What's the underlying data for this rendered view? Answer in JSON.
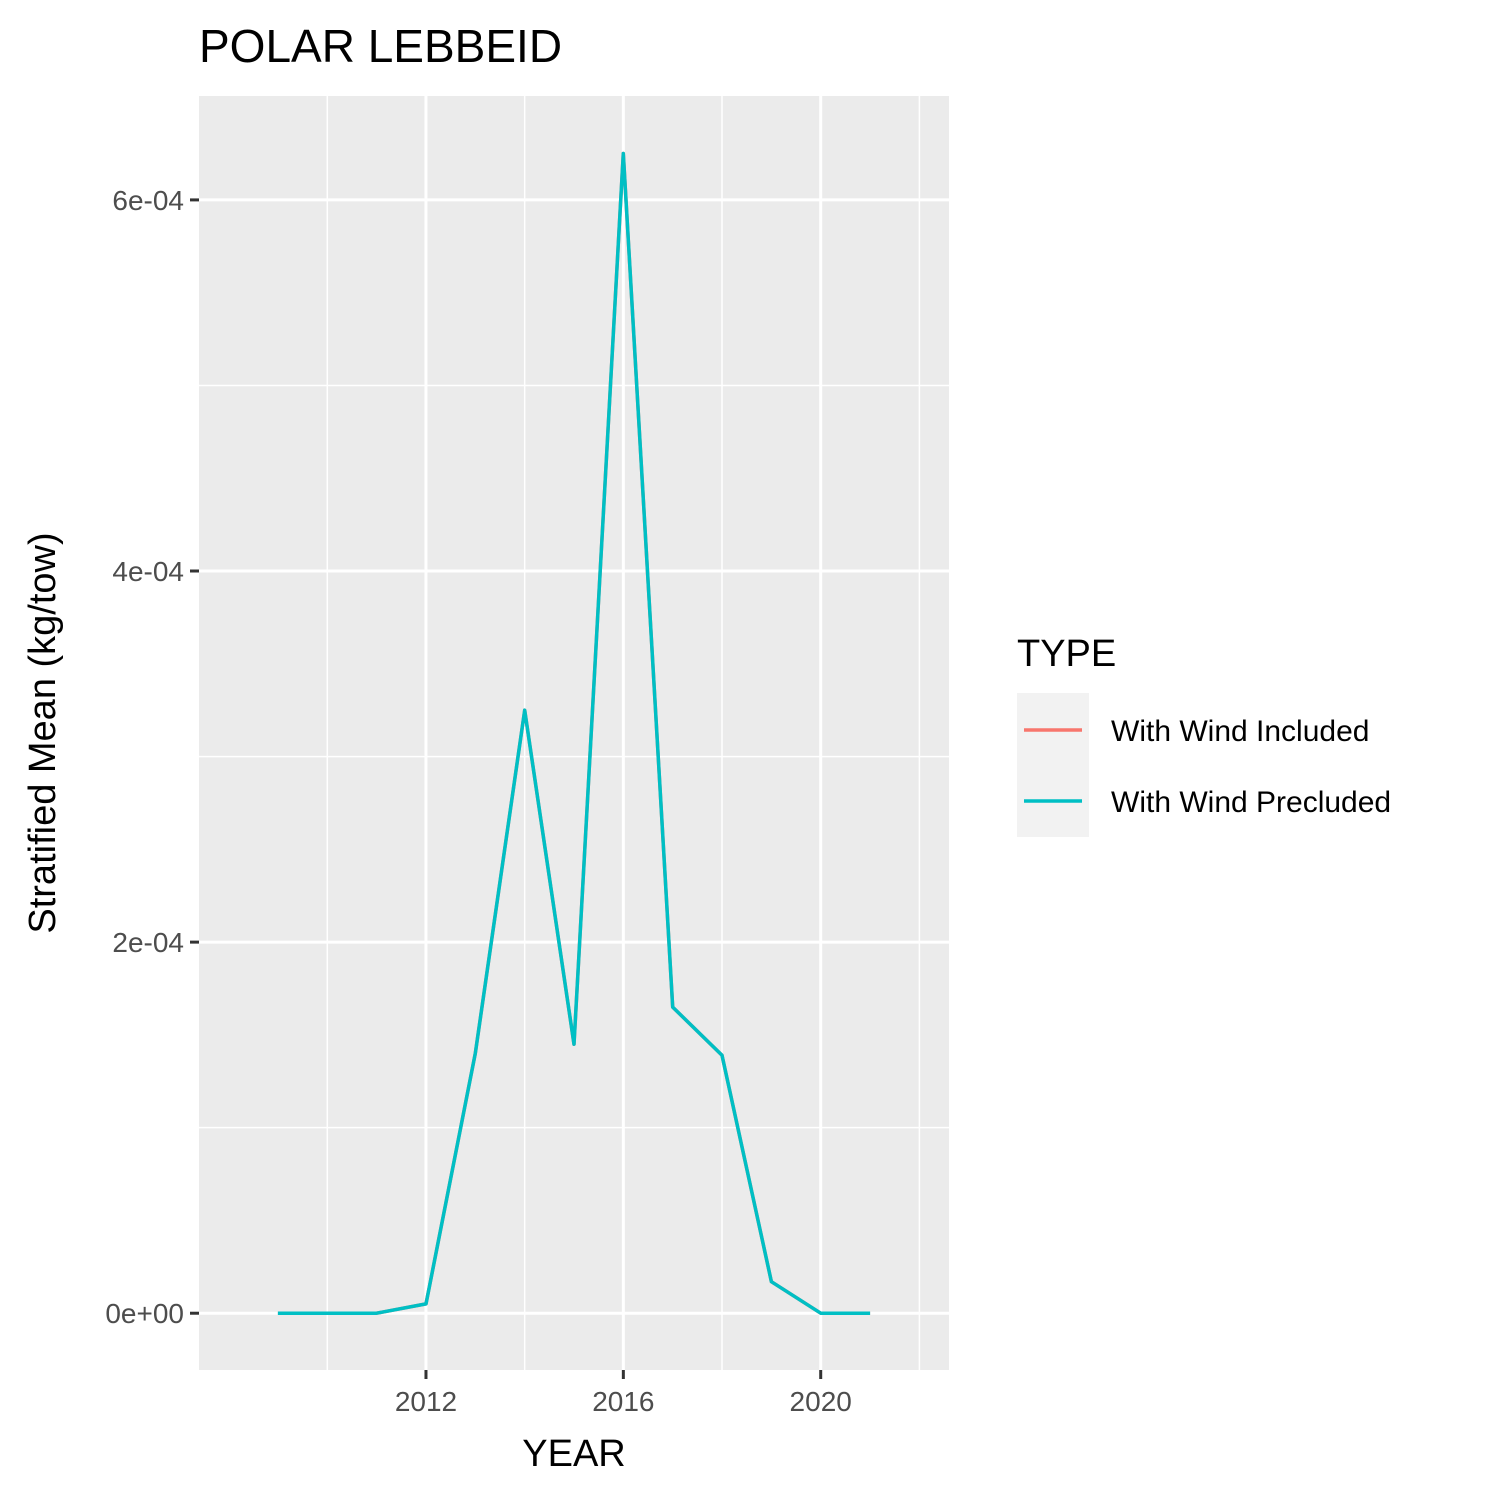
{
  "chart_data": {
    "type": "line",
    "title": "POLAR LEBBEID",
    "xlabel": "YEAR",
    "ylabel": "Stratified Mean (kg/tow)",
    "x": [
      2009,
      2010,
      2011,
      2012,
      2013,
      2014,
      2015,
      2016,
      2017,
      2018,
      2019,
      2020,
      2021
    ],
    "series": [
      {
        "name": "With Wind Included",
        "color": "#F8766D",
        "values": [
          0,
          0,
          0,
          5e-06,
          0.00014,
          0.000325,
          0.000145,
          0.000625,
          0.000165,
          0.000139,
          1.7e-05,
          0,
          0
        ]
      },
      {
        "name": "With Wind Precluded",
        "color": "#00BFC4",
        "values": [
          0,
          0,
          0,
          5e-06,
          0.00014,
          0.000325,
          0.000145,
          0.000625,
          0.000165,
          0.000139,
          1.7e-05,
          0,
          0
        ]
      }
    ],
    "xlim": [
      2007.4,
      2022.6
    ],
    "ylim": [
      -3.06e-05,
      0.000656
    ],
    "xticks": [
      2012,
      2016,
      2020
    ],
    "xtick_labels": [
      "2012",
      "2016",
      "2020"
    ],
    "xminor": [
      2010,
      2014,
      2018,
      2022
    ],
    "yticks": [
      0,
      0.0002,
      0.0004,
      0.0006
    ],
    "ytick_labels": [
      "0e+00",
      "2e-04",
      "4e-04",
      "6e-04"
    ],
    "yminor": [
      0.0001,
      0.0003,
      0.0005
    ],
    "grid": true,
    "legend": {
      "title": "TYPE",
      "position": "right"
    }
  },
  "colors": {
    "panel_background": "#EBEBEB",
    "grid": "#FFFFFF",
    "legend_key_background": "#F2F2F2"
  }
}
